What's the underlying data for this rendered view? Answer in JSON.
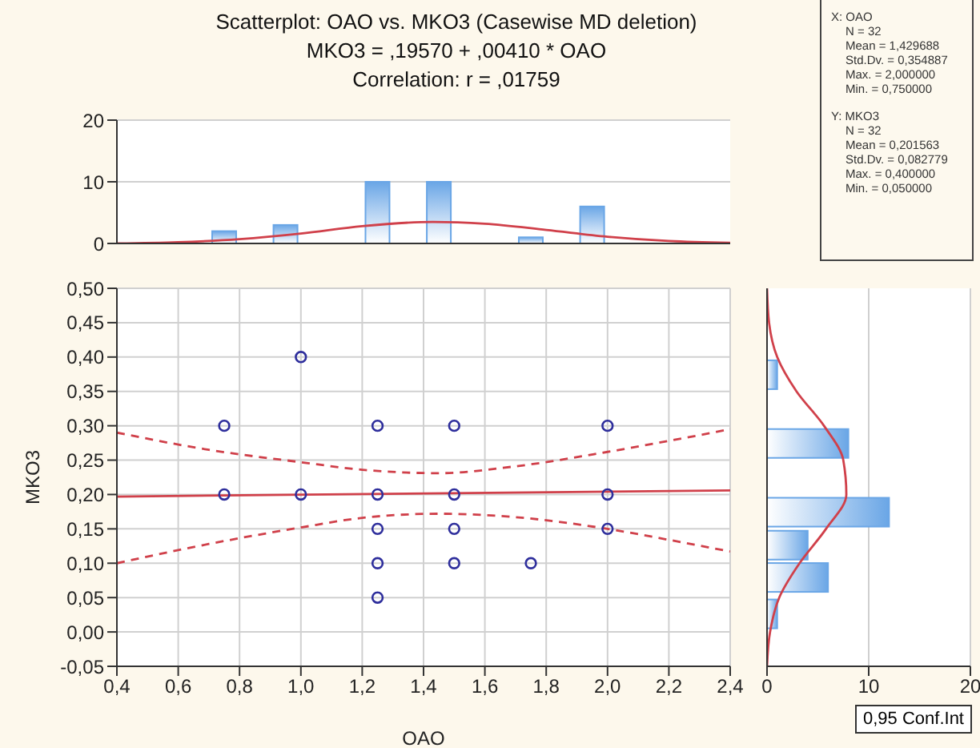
{
  "chart_data": [
    {
      "type": "scatter",
      "xlabel": "OAO",
      "ylabel": "MKO3",
      "annotations": [
        "0,95 Conf.Int"
      ],
      "series": [
        {
          "type": "scatter",
          "color": "#2e2e9c",
          "marker": "circle",
          "x": [
            0.75,
            0.75,
            1.0,
            1.0,
            1.25,
            1.25,
            1.25,
            1.25,
            1.25,
            1.5,
            1.5,
            1.5,
            1.5,
            1.75,
            2.0,
            2.0,
            2.0
          ],
          "values": [
            0.3,
            0.2,
            0.4,
            0.2,
            0.3,
            0.2,
            0.15,
            0.1,
            0.05,
            0.3,
            0.2,
            0.15,
            0.1,
            0.1,
            0.3,
            0.2,
            0.15
          ]
        },
        {
          "type": "line",
          "color": "#d0404a",
          "x": [
            0.4,
            2.4
          ],
          "values": [
            0.197,
            0.206
          ]
        },
        {
          "type": "line",
          "color": "#d0404a",
          "line_style": "dashed",
          "x": [
            0.4,
            0.7,
            1.0,
            1.2,
            1.45,
            1.7,
            2.0,
            2.2,
            2.4
          ],
          "values": [
            0.29,
            0.265,
            0.247,
            0.236,
            0.231,
            0.241,
            0.262,
            0.278,
            0.295
          ]
        },
        {
          "type": "line",
          "color": "#d0404a",
          "line_style": "dashed",
          "x": [
            0.4,
            0.7,
            1.0,
            1.2,
            1.45,
            1.7,
            2.0,
            2.2,
            2.4
          ],
          "values": [
            0.1,
            0.128,
            0.152,
            0.166,
            0.172,
            0.167,
            0.15,
            0.134,
            0.117
          ]
        }
      ],
      "xlim": [
        0.4,
        2.4
      ],
      "xticks": [
        {
          "value": 0.4,
          "label": "0,4"
        },
        {
          "value": 0.6,
          "label": "0,6"
        },
        {
          "value": 0.8,
          "label": "0,8"
        },
        {
          "value": 1.0,
          "label": "1,0"
        },
        {
          "value": 1.2,
          "label": "1,2"
        },
        {
          "value": 1.4,
          "label": "1,4"
        },
        {
          "value": 1.6,
          "label": "1,6"
        },
        {
          "value": 1.8,
          "label": "1,8"
        },
        {
          "value": 2.0,
          "label": "2,0"
        },
        {
          "value": 2.2,
          "label": "2,2"
        },
        {
          "value": 2.4,
          "label": "2,4"
        }
      ],
      "ylim": [
        -0.05,
        0.5
      ],
      "yticks": [
        {
          "value": -0.05,
          "label": "-0,05"
        },
        {
          "value": 0,
          "label": "0,00"
        },
        {
          "value": 0.05,
          "label": "0,05"
        },
        {
          "value": 0.1,
          "label": "0,10"
        },
        {
          "value": 0.15,
          "label": "0,15"
        },
        {
          "value": 0.2,
          "label": "0,20"
        },
        {
          "value": 0.25,
          "label": "0,25"
        },
        {
          "value": 0.3,
          "label": "0,30"
        },
        {
          "value": 0.35,
          "label": "0,35"
        },
        {
          "value": 0.4,
          "label": "0,40"
        },
        {
          "value": 0.45,
          "label": "0,45"
        },
        {
          "value": 0.5,
          "label": "0,50"
        }
      ],
      "grid": true
    },
    {
      "type": "bar",
      "title": "Scatterplot: OAO vs. MKO3 (Casewise MD deletion)",
      "subtitle": "MKO3 = ,19570 + ,00410 * OAO",
      "annotations": [
        "Correlation: r = ,01759"
      ],
      "series": [
        {
          "type": "bar",
          "color": "#6aa6e6",
          "x": [
            0.75,
            0.95,
            1.25,
            1.45,
            1.75,
            1.95
          ],
          "values": [
            2,
            3,
            10,
            10,
            1,
            6
          ]
        },
        {
          "type": "line",
          "color": "#d0404a",
          "x": [
            0.4,
            0.6,
            0.8,
            1.0,
            1.2,
            1.43,
            1.6,
            1.8,
            2.0,
            2.2,
            2.4
          ],
          "values": [
            0,
            0.2,
            0.7,
            1.6,
            2.8,
            3.5,
            3.2,
            2.2,
            1.1,
            0.4,
            0.1
          ]
        }
      ],
      "xlim": [
        0.4,
        2.4
      ],
      "ylim": [
        0,
        20
      ],
      "yticks": [
        0,
        10,
        20
      ],
      "grid": "y",
      "tick_labels": "y"
    },
    {
      "type": "bar",
      "orientation": "horizontal",
      "series": [
        {
          "type": "bar",
          "color": "#6aa6e6",
          "x": [
            0.374,
            0.274,
            0.174,
            0.126,
            0.079,
            0.026
          ],
          "values": [
            1,
            8,
            12,
            4,
            6,
            1
          ]
        },
        {
          "type": "line",
          "color": "#d0404a",
          "x": [
            0.5,
            0.45,
            0.4,
            0.35,
            0.3,
            0.25,
            0.2,
            0.15,
            0.1,
            0.05,
            0.0,
            -0.05
          ],
          "values": [
            0,
            0.2,
            1,
            2.9,
            5.6,
            7.5,
            7.8,
            5.8,
            3.2,
            1.2,
            0.3,
            0
          ]
        }
      ],
      "xlim": [
        0,
        20
      ],
      "xticks": [
        0,
        10,
        20
      ],
      "ylim": [
        -0.05,
        0.5
      ],
      "grid": "x",
      "tick_labels": "x"
    },
    {
      "type": "other",
      "annotations": [
        "X: OAO",
        "N = 32",
        "Mean = 1,429688",
        "Std.Dv. = 0,354887",
        "Max. = 2,000000",
        "Min. = 0,750000",
        "Y: MKO3",
        "N = 32",
        "Mean = 0,201563",
        "Std.Dv. = 0,082779",
        "Max. = 0,400000",
        "Min. = 0,050000"
      ]
    }
  ]
}
